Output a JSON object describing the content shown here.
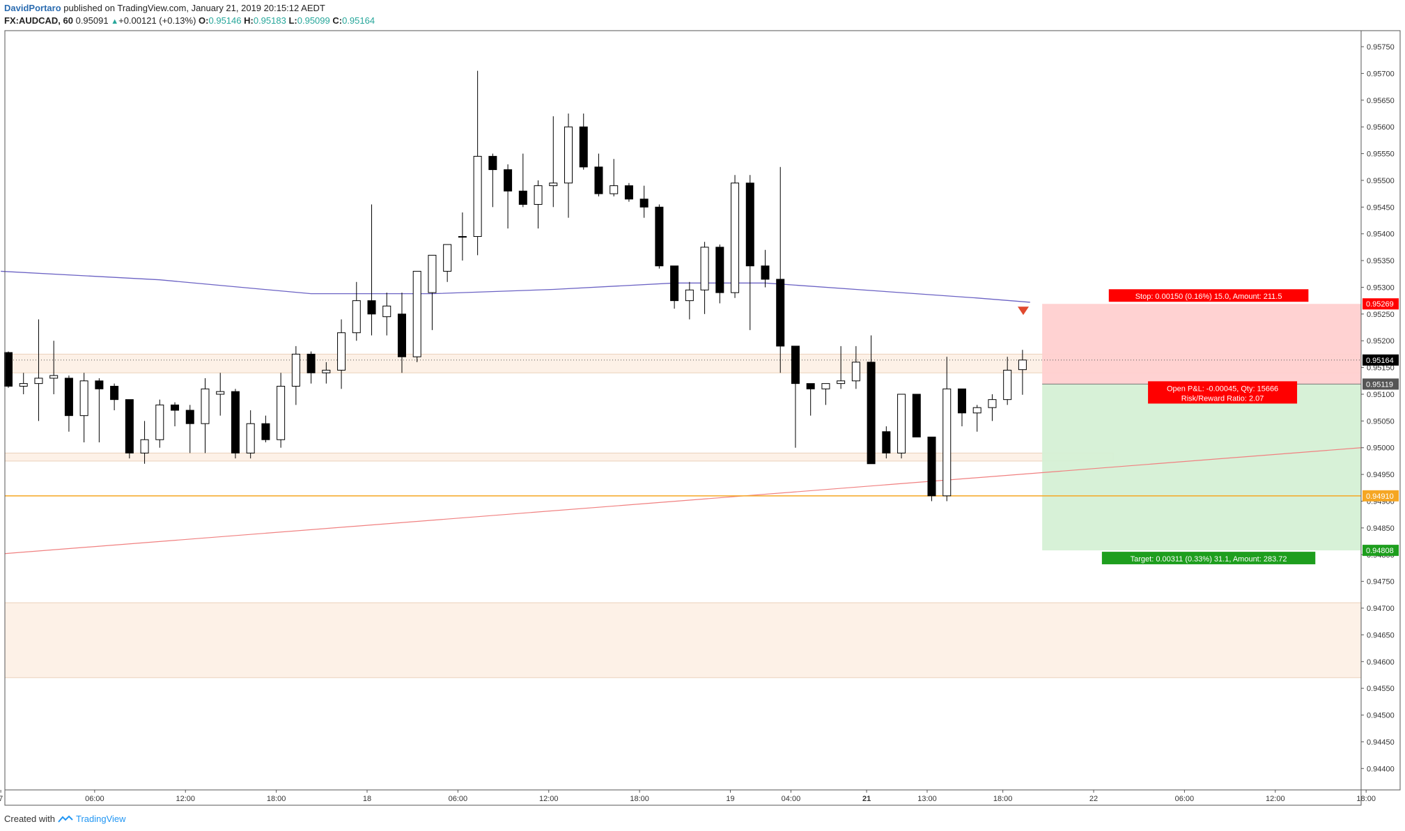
{
  "header": {
    "author": "DavidPortaro",
    "published": " published on TradingView.com, January 21, 2019 20:15:12 AEDT",
    "symbol": "FX:AUDCAD, 60",
    "last": "0.95091",
    "change": "+0.00121 (+0.13%)",
    "o_label": "O:",
    "o_value": "0.95146",
    "h_label": "H:",
    "h_value": "0.95183",
    "l_label": "L:",
    "l_value": "0.95099",
    "c_label": "C:",
    "c_value": "0.95164"
  },
  "footer": {
    "created_with": "Created with",
    "brand": "TradingView"
  },
  "colors": {
    "up_body": "#ffffff",
    "down_body": "#000000",
    "ma_line": "#6b62c4",
    "trendline": "#f08080",
    "orange_line": "#f5a623",
    "stop_zone": "#ffd0d0",
    "target_zone": "#d5f0d5",
    "sr_zone": "#fdefe3",
    "stop_label_bg": "#ff0000",
    "target_label_bg": "#1e9e1e"
  },
  "chart_data": {
    "type": "candlestick",
    "symbol": "FX:AUDCAD",
    "timeframe": "60",
    "ylim": [
      0.9436,
      0.9578
    ],
    "y_ticks": [
      "0.95750",
      "0.95700",
      "0.95650",
      "0.95600",
      "0.95550",
      "0.95500",
      "0.95450",
      "0.95400",
      "0.95350",
      "0.95300",
      "0.95250",
      "0.95200",
      "0.95150",
      "0.95100",
      "0.95050",
      "0.95000",
      "0.94950",
      "0.94900",
      "0.94850",
      "0.94800",
      "0.94750",
      "0.94700",
      "0.94650",
      "0.94600",
      "0.94550",
      "0.94500",
      "0.94450",
      "0.94400"
    ],
    "x_ticks": [
      {
        "label": "7",
        "bar": -0.5
      },
      {
        "label": "06:00",
        "bar": 5.7
      },
      {
        "label": "12:00",
        "bar": 11.7
      },
      {
        "label": "18:00",
        "bar": 17.7
      },
      {
        "label": "18",
        "bar": 23.7
      },
      {
        "label": "06:00",
        "bar": 29.7
      },
      {
        "label": "12:00",
        "bar": 35.7
      },
      {
        "label": "18:00",
        "bar": 41.7
      },
      {
        "label": "19",
        "bar": 47.7
      },
      {
        "label": "04:00",
        "bar": 51.7
      },
      {
        "label": "21",
        "bar": 56.7,
        "bold": true
      },
      {
        "label": "13:00",
        "bar": 60.7
      },
      {
        "label": "18:00",
        "bar": 65.7
      },
      {
        "label": "22",
        "bar": 71.7
      },
      {
        "label": "06:00",
        "bar": 77.7
      },
      {
        "label": "12:00",
        "bar": 83.7
      },
      {
        "label": "18:00",
        "bar": 89.7
      }
    ],
    "candles": [
      [
        0.95178,
        0.9518,
        0.95112,
        0.95115
      ],
      [
        0.95115,
        0.9514,
        0.951,
        0.9512
      ],
      [
        0.9512,
        0.9524,
        0.9505,
        0.9513
      ],
      [
        0.9513,
        0.952,
        0.951,
        0.95135
      ],
      [
        0.9513,
        0.95135,
        0.9503,
        0.9506
      ],
      [
        0.9506,
        0.9514,
        0.9501,
        0.95125
      ],
      [
        0.95125,
        0.9513,
        0.9501,
        0.9511
      ],
      [
        0.95115,
        0.9512,
        0.9507,
        0.9509
      ],
      [
        0.9509,
        0.9509,
        0.9498,
        0.9499
      ],
      [
        0.9499,
        0.9505,
        0.9497,
        0.95015
      ],
      [
        0.95015,
        0.9509,
        0.95,
        0.9508
      ],
      [
        0.9508,
        0.95085,
        0.9504,
        0.9507
      ],
      [
        0.9507,
        0.9508,
        0.9499,
        0.95045
      ],
      [
        0.95045,
        0.9513,
        0.9499,
        0.9511
      ],
      [
        0.951,
        0.9514,
        0.9506,
        0.95105
      ],
      [
        0.95105,
        0.9511,
        0.9498,
        0.9499
      ],
      [
        0.9499,
        0.9507,
        0.9498,
        0.95045
      ],
      [
        0.95045,
        0.9506,
        0.9501,
        0.95015
      ],
      [
        0.95015,
        0.9514,
        0.95,
        0.95115
      ],
      [
        0.95115,
        0.9519,
        0.9508,
        0.95175
      ],
      [
        0.95175,
        0.9518,
        0.9512,
        0.9514
      ],
      [
        0.9514,
        0.9516,
        0.9512,
        0.95145
      ],
      [
        0.95145,
        0.9524,
        0.9511,
        0.95215
      ],
      [
        0.95215,
        0.9531,
        0.952,
        0.95275
      ],
      [
        0.95275,
        0.95455,
        0.9521,
        0.9525
      ],
      [
        0.95245,
        0.9529,
        0.9521,
        0.95265
      ],
      [
        0.9525,
        0.9529,
        0.9514,
        0.9517
      ],
      [
        0.9517,
        0.9533,
        0.9516,
        0.9533
      ],
      [
        0.9529,
        0.9536,
        0.9522,
        0.9536
      ],
      [
        0.9533,
        0.9538,
        0.9531,
        0.9538
      ],
      [
        0.95395,
        0.9544,
        0.9535,
        0.95395
      ],
      [
        0.95395,
        0.95705,
        0.9536,
        0.95545
      ],
      [
        0.95545,
        0.9555,
        0.9545,
        0.9552
      ],
      [
        0.9552,
        0.9553,
        0.9541,
        0.9548
      ],
      [
        0.9548,
        0.9555,
        0.9545,
        0.95455
      ],
      [
        0.95455,
        0.955,
        0.9541,
        0.9549
      ],
      [
        0.9549,
        0.9562,
        0.9545,
        0.95495
      ],
      [
        0.95495,
        0.95625,
        0.9543,
        0.956
      ],
      [
        0.956,
        0.95625,
        0.9552,
        0.95525
      ],
      [
        0.95525,
        0.9555,
        0.9547,
        0.95475
      ],
      [
        0.95475,
        0.9554,
        0.9547,
        0.9549
      ],
      [
        0.9549,
        0.95495,
        0.9546,
        0.95465
      ],
      [
        0.95465,
        0.9549,
        0.9543,
        0.9545
      ],
      [
        0.9545,
        0.95455,
        0.95335,
        0.9534
      ],
      [
        0.9534,
        0.9534,
        0.9526,
        0.95275
      ],
      [
        0.95275,
        0.9531,
        0.9524,
        0.95295
      ],
      [
        0.95295,
        0.95385,
        0.9525,
        0.95375
      ],
      [
        0.95375,
        0.9538,
        0.9527,
        0.9529
      ],
      [
        0.9529,
        0.9551,
        0.9528,
        0.95495
      ],
      [
        0.95495,
        0.9551,
        0.9522,
        0.9534
      ],
      [
        0.9534,
        0.9537,
        0.953,
        0.95315
      ],
      [
        0.95315,
        0.95525,
        0.9514,
        0.9519
      ],
      [
        0.9519,
        0.9519,
        0.95,
        0.9512
      ],
      [
        0.9512,
        0.9512,
        0.9506,
        0.9511
      ],
      [
        0.9511,
        0.9512,
        0.9508,
        0.9512
      ],
      [
        0.9512,
        0.9519,
        0.9511,
        0.95125
      ],
      [
        0.95125,
        0.9519,
        0.9511,
        0.9516
      ],
      [
        0.9516,
        0.9521,
        0.9497,
        0.9497
      ],
      [
        0.9503,
        0.9504,
        0.9498,
        0.9499
      ],
      [
        0.9499,
        0.951,
        0.9498,
        0.951
      ],
      [
        0.951,
        0.951,
        0.9502,
        0.9502
      ],
      [
        0.9502,
        0.9502,
        0.949,
        0.9491
      ],
      [
        0.9491,
        0.9517,
        0.949,
        0.9511
      ],
      [
        0.9511,
        0.9511,
        0.9504,
        0.95065
      ],
      [
        0.95065,
        0.9508,
        0.9503,
        0.95075
      ],
      [
        0.95075,
        0.951,
        0.9505,
        0.9509
      ],
      [
        0.9509,
        0.9517,
        0.9508,
        0.95145
      ],
      [
        0.95146,
        0.95183,
        0.95099,
        0.95164
      ]
    ],
    "moving_average": {
      "name": "MA",
      "points": [
        [
          -0.5,
          0.9533
        ],
        [
          10,
          0.95314
        ],
        [
          20,
          0.95288
        ],
        [
          28,
          0.95288
        ],
        [
          36,
          0.95296
        ],
        [
          44,
          0.95308
        ],
        [
          50,
          0.95308
        ],
        [
          58,
          0.95292
        ],
        [
          64,
          0.9528
        ],
        [
          67.5,
          0.95272
        ]
      ]
    },
    "trendline": {
      "from": [
        -0.5,
        0.94802
      ],
      "to": [
        90.2,
        0.95
      ]
    },
    "horizontal_line": {
      "price": 0.9491,
      "label": "0.94910"
    },
    "support_zones": [
      {
        "top": 0.95175,
        "bottom": 0.9514,
        "from_bar": -0.5,
        "to_bar": 90.2
      },
      {
        "top": 0.9499,
        "bottom": 0.94975,
        "from_bar": -0.5,
        "to_bar": 73.0
      },
      {
        "top": 0.9471,
        "bottom": 0.9457,
        "from_bar": -0.5,
        "to_bar": 90.2
      }
    ],
    "position": {
      "side": "short",
      "from_bar": 68.3,
      "to_bar": 90.2,
      "entry": 0.95119,
      "stop": 0.95269,
      "target": 0.94808,
      "stop_label": "Stop: 0.00150 (0.16%) 15.0, Amount: 211.5",
      "target_label": "Target: 0.00311 (0.33%) 31.1, Amount: 283.72",
      "pnl_label": "Open P&L: -0.00045, Qty: 15666",
      "rr_label": "Risk/Reward Ratio: 2.07"
    },
    "price_tags": [
      {
        "price": 0.95269,
        "text": "0.95269",
        "color": "#ff0000",
        "text_color": "#ffffff"
      },
      {
        "price": 0.95164,
        "text": "0.95164",
        "color": "#000000",
        "text_color": "#ffffff"
      },
      {
        "price": 0.95119,
        "text": "0.95119",
        "color": "#555555",
        "text_color": "#ffffff"
      },
      {
        "price": 0.9491,
        "text": "0.94910",
        "color": "#f5a623",
        "text_color": "#ffffff"
      },
      {
        "price": 0.94808,
        "text": "0.94808",
        "color": "#1e9e1e",
        "text_color": "#ffffff"
      }
    ],
    "last_price_dotted": 0.95164
  }
}
